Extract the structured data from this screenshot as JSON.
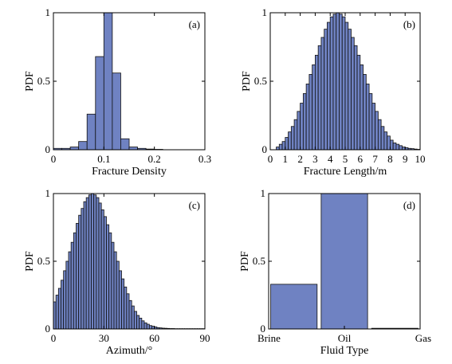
{
  "colors": {
    "bar_fill": "#6f82c2",
    "bar_stroke": "#111111",
    "axis": "#000000"
  },
  "chart_data": [
    {
      "panel": "(a)",
      "type": "bar",
      "xlabel": "Fracture Density",
      "ylabel": "PDF",
      "xlim": [
        0,
        0.3
      ],
      "ylim": [
        0,
        1
      ],
      "xticks": [
        0,
        0.1,
        0.2,
        0.3
      ],
      "xtick_labels": [
        "0",
        "0.1",
        "0.2",
        "0.3"
      ],
      "yticks": [
        0,
        0.5,
        1
      ],
      "ytick_labels": [
        "0",
        "0.5",
        "1"
      ],
      "bin_width": 0.0167,
      "x": [
        0.0083,
        0.025,
        0.0417,
        0.0583,
        0.075,
        0.0917,
        0.1083,
        0.125,
        0.1417,
        0.1583,
        0.175,
        0.1917,
        0.2083,
        0.225,
        0.2417,
        0.2583,
        0.275,
        0.2917
      ],
      "values": [
        0.01,
        0.01,
        0.02,
        0.06,
        0.26,
        0.68,
        1.0,
        0.56,
        0.08,
        0.02,
        0.01,
        0.005,
        0.003,
        0.0,
        0.0,
        0.0,
        0.0,
        0.0
      ]
    },
    {
      "panel": "(b)",
      "type": "bar",
      "xlabel": "Fracture Length/m",
      "ylabel": "PDF",
      "xlim": [
        0,
        10
      ],
      "ylim": [
        0,
        1
      ],
      "xticks": [
        0,
        1,
        2,
        3,
        4,
        5,
        6,
        7,
        8,
        9,
        10
      ],
      "xtick_labels": [
        "0",
        "1",
        "2",
        "3",
        "4",
        "5",
        "6",
        "7",
        "8",
        "9",
        "10"
      ],
      "yticks": [
        0,
        0.5,
        1
      ],
      "ytick_labels": [
        "0",
        "0.5",
        "1"
      ],
      "bin_width": 0.2,
      "x": [
        0.5,
        0.7,
        0.9,
        1.1,
        1.3,
        1.5,
        1.7,
        1.9,
        2.1,
        2.3,
        2.5,
        2.7,
        2.9,
        3.1,
        3.3,
        3.5,
        3.7,
        3.9,
        4.1,
        4.3,
        4.5,
        4.7,
        4.9,
        5.1,
        5.3,
        5.5,
        5.7,
        5.9,
        6.1,
        6.3,
        6.5,
        6.7,
        6.9,
        7.1,
        7.3,
        7.5,
        7.7,
        7.9,
        8.1,
        8.3,
        8.5,
        8.7,
        8.9,
        9.1,
        9.3,
        9.5,
        9.7,
        9.9
      ],
      "values": [
        0.02,
        0.04,
        0.06,
        0.09,
        0.13,
        0.17,
        0.22,
        0.28,
        0.34,
        0.41,
        0.48,
        0.55,
        0.62,
        0.69,
        0.76,
        0.82,
        0.88,
        0.93,
        0.97,
        0.99,
        1.0,
        0.99,
        0.97,
        0.93,
        0.88,
        0.82,
        0.76,
        0.69,
        0.62,
        0.55,
        0.48,
        0.41,
        0.34,
        0.28,
        0.22,
        0.17,
        0.13,
        0.1,
        0.07,
        0.05,
        0.04,
        0.03,
        0.02,
        0.015,
        0.01,
        0.008,
        0.005,
        0.003
      ]
    },
    {
      "panel": "(c)",
      "type": "bar",
      "xlabel": "Azimuth/°",
      "ylabel": "PDF",
      "xlim": [
        0,
        90
      ],
      "ylim": [
        0,
        1
      ],
      "xticks": [
        0,
        30,
        60,
        90
      ],
      "xtick_labels": [
        "0",
        "30",
        "60",
        "90"
      ],
      "yticks": [
        0,
        0.5,
        1
      ],
      "ytick_labels": [
        "0",
        "0.5",
        "1"
      ],
      "bin_width": 1.5,
      "x": [
        0.75,
        2.25,
        3.75,
        5.25,
        6.75,
        8.25,
        9.75,
        11.25,
        12.75,
        14.25,
        15.75,
        17.25,
        18.75,
        20.25,
        21.75,
        23.25,
        24.75,
        26.25,
        27.75,
        29.25,
        30.75,
        32.25,
        33.75,
        35.25,
        36.75,
        38.25,
        39.75,
        41.25,
        42.75,
        44.25,
        45.75,
        47.25,
        48.75,
        50.25,
        51.75,
        53.25,
        54.75,
        56.25,
        57.75,
        59.25,
        60.75,
        62.25,
        63.75,
        65.25,
        66.75,
        68.25,
        69.75,
        71.25,
        72.75,
        74.25,
        75.75,
        77.25,
        78.75,
        80.25,
        81.75,
        83.25,
        84.75,
        86.25,
        87.75,
        89.25
      ],
      "values": [
        0.2,
        0.25,
        0.3,
        0.36,
        0.43,
        0.5,
        0.57,
        0.64,
        0.71,
        0.78,
        0.84,
        0.89,
        0.94,
        0.97,
        0.99,
        1.0,
        0.99,
        0.97,
        0.93,
        0.88,
        0.83,
        0.77,
        0.71,
        0.64,
        0.57,
        0.5,
        0.43,
        0.37,
        0.31,
        0.26,
        0.21,
        0.17,
        0.13,
        0.1,
        0.08,
        0.06,
        0.045,
        0.035,
        0.025,
        0.02,
        0.015,
        0.01,
        0.008,
        0.006,
        0.005,
        0.004,
        0.003,
        0.003,
        0.002,
        0.002,
        0.002,
        0.002,
        0.002,
        0.002,
        0.002,
        0.002,
        0.002,
        0.002,
        0.002,
        0.002
      ]
    },
    {
      "panel": "(d)",
      "type": "bar",
      "xlabel": "Fluid Type",
      "ylabel": "PDF",
      "xlim": [
        0,
        3
      ],
      "ylim": [
        0,
        1
      ],
      "categories": [
        "Brine",
        "Oil",
        "Gas"
      ],
      "yticks": [
        0,
        0.5,
        1
      ],
      "ytick_labels": [
        "0",
        "0.5",
        "1"
      ],
      "values": [
        0.33,
        1.0,
        0.005
      ]
    }
  ]
}
